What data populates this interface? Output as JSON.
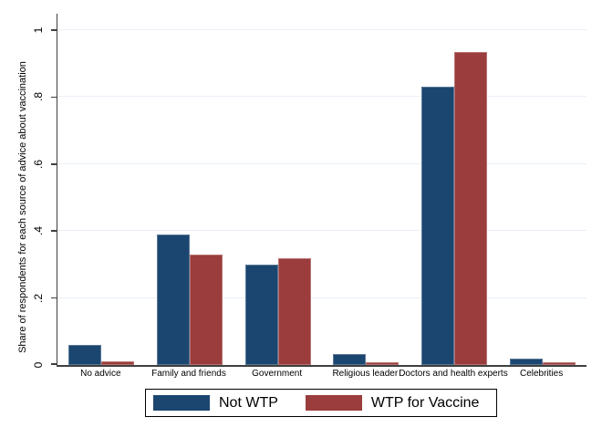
{
  "chart_data": {
    "type": "bar",
    "title": "",
    "ylabel": "Share of respondents for each source of advice about vaccination",
    "xlabel": "",
    "ylim": [
      0,
      1
    ],
    "ytick_labels": [
      "0",
      ".2",
      ".4",
      ".6",
      ".8",
      "1"
    ],
    "ytick_values": [
      0,
      0.2,
      0.4,
      0.6,
      0.8,
      1
    ],
    "grid": true,
    "legend_position": "bottom-center",
    "categories": [
      "No advice",
      "Family and friends",
      "Government",
      "Religious leader",
      "Doctors and health experts",
      "Celebrities"
    ],
    "series": [
      {
        "name": "Not WTP",
        "color": "#1b4670",
        "values": [
          0.06,
          0.39,
          0.3,
          0.032,
          0.83,
          0.02
        ]
      },
      {
        "name": "WTP for Vaccine",
        "color": "#9a3d3c",
        "values": [
          0.012,
          0.33,
          0.32,
          0.007,
          0.935,
          0.008
        ]
      }
    ],
    "colors": {
      "grid": "#eaf0f7",
      "axis": "#3f3f3f",
      "background": "#ffffff",
      "legend_border": "#000000"
    }
  }
}
